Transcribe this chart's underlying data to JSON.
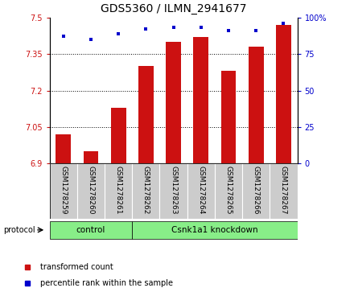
{
  "title": "GDS5360 / ILMN_2941677",
  "samples": [
    "GSM1278259",
    "GSM1278260",
    "GSM1278261",
    "GSM1278262",
    "GSM1278263",
    "GSM1278264",
    "GSM1278265",
    "GSM1278266",
    "GSM1278267"
  ],
  "transformed_count": [
    7.02,
    6.95,
    7.13,
    7.3,
    7.4,
    7.42,
    7.28,
    7.38,
    7.47
  ],
  "percentile_rank": [
    87,
    85,
    89,
    92,
    93,
    93,
    91,
    91,
    96
  ],
  "ylim_left": [
    6.9,
    7.5
  ],
  "yticks_left": [
    6.9,
    7.05,
    7.2,
    7.35,
    7.5
  ],
  "ylim_right": [
    0,
    100
  ],
  "yticks_right": [
    0,
    25,
    50,
    75,
    100
  ],
  "bar_color": "#cc1111",
  "dot_color": "#0000cc",
  "control_count": 3,
  "control_label": "control",
  "knockdown_label": "Csnk1a1 knockdown",
  "protocol_label": "protocol",
  "legend_bar_label": "transformed count",
  "legend_dot_label": "percentile rank within the sample",
  "group_color": "#88ee88",
  "tick_label_bg": "#cccccc",
  "title_fontsize": 10,
  "tick_fontsize": 7,
  "label_fontsize": 6.5,
  "group_fontsize": 7.5,
  "legend_fontsize": 7
}
